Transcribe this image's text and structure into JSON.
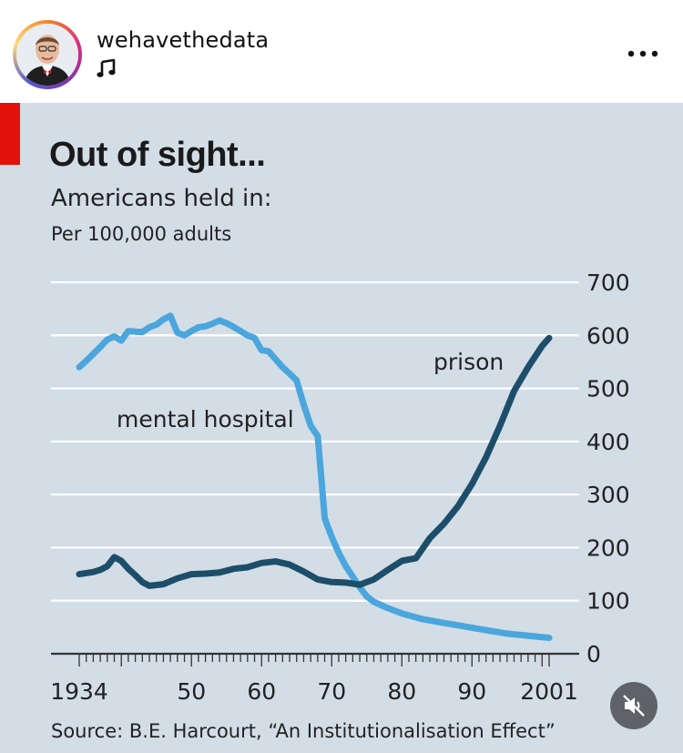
{
  "post": {
    "username": "wehavethedata",
    "music_icon": "music-note-icon",
    "more_icon": "more-options-icon",
    "mute_icon": "muted-speaker-icon"
  },
  "colors": {
    "accent_red": "#e3120b",
    "mental_hospital": "#4aa6dc",
    "prison": "#1d4e69",
    "panel_bg": "#d3dde6"
  },
  "chart_data": {
    "type": "line",
    "title": "Out of sight...",
    "subtitle": "Americans held in:",
    "unit_label": "Per 100,000 adults",
    "source": "Source: B.E. Harcourt, “An Institutionalisation Effect”",
    "x_ticks": [
      "1934",
      "50",
      "60",
      "70",
      "80",
      "90",
      "2001"
    ],
    "x_tick_values": [
      1934,
      1950,
      1960,
      1970,
      1980,
      1990,
      2001
    ],
    "y_ticks": [
      "0",
      "100",
      "200",
      "300",
      "400",
      "500",
      "600",
      "700"
    ],
    "y_tick_values": [
      0,
      100,
      200,
      300,
      400,
      500,
      600,
      700
    ],
    "xlim": [
      1930,
      2005
    ],
    "ylim": [
      0,
      700
    ],
    "y_axis_side": "right",
    "grid": true,
    "series": [
      {
        "name": "mental hospital",
        "x": [
          1934,
          1935,
          1936,
          1937,
          1938,
          1939,
          1940,
          1941,
          1942,
          1943,
          1944,
          1945,
          1946,
          1947,
          1948,
          1949,
          1950,
          1951,
          1952,
          1953,
          1954,
          1955,
          1956,
          1957,
          1958,
          1959,
          1960,
          1961,
          1962,
          1963,
          1964,
          1965,
          1966,
          1967,
          1968,
          1969,
          1970,
          1971,
          1972,
          1973,
          1974,
          1975,
          1976,
          1978,
          1980,
          1983,
          1986,
          1990,
          1995,
          2001
        ],
        "values": [
          540,
          552,
          565,
          578,
          592,
          598,
          590,
          608,
          607,
          606,
          615,
          620,
          630,
          637,
          605,
          600,
          608,
          615,
          617,
          622,
          628,
          623,
          616,
          608,
          600,
          595,
          572,
          570,
          555,
          540,
          528,
          515,
          470,
          430,
          410,
          255,
          220,
          190,
          165,
          145,
          125,
          108,
          98,
          86,
          76,
          65,
          58,
          49,
          38,
          30
        ]
      },
      {
        "name": "prison",
        "x": [
          1934,
          1935,
          1936,
          1937,
          1938,
          1939,
          1940,
          1941,
          1942,
          1943,
          1944,
          1946,
          1948,
          1950,
          1952,
          1954,
          1956,
          1958,
          1960,
          1962,
          1964,
          1966,
          1968,
          1970,
          1972,
          1974,
          1976,
          1978,
          1980,
          1982,
          1984,
          1986,
          1988,
          1990,
          1992,
          1994,
          1996,
          1998,
          2000,
          2001
        ],
        "values": [
          150,
          152,
          154,
          158,
          165,
          182,
          175,
          160,
          148,
          135,
          128,
          131,
          142,
          150,
          151,
          153,
          160,
          163,
          171,
          174,
          168,
          155,
          140,
          135,
          134,
          130,
          140,
          158,
          175,
          180,
          218,
          245,
          278,
          320,
          370,
          430,
          495,
          540,
          580,
          595
        ]
      }
    ],
    "annotations": [
      {
        "text": "mental hospital",
        "series": "mental hospital"
      },
      {
        "text": "prison",
        "series": "prison"
      }
    ]
  }
}
